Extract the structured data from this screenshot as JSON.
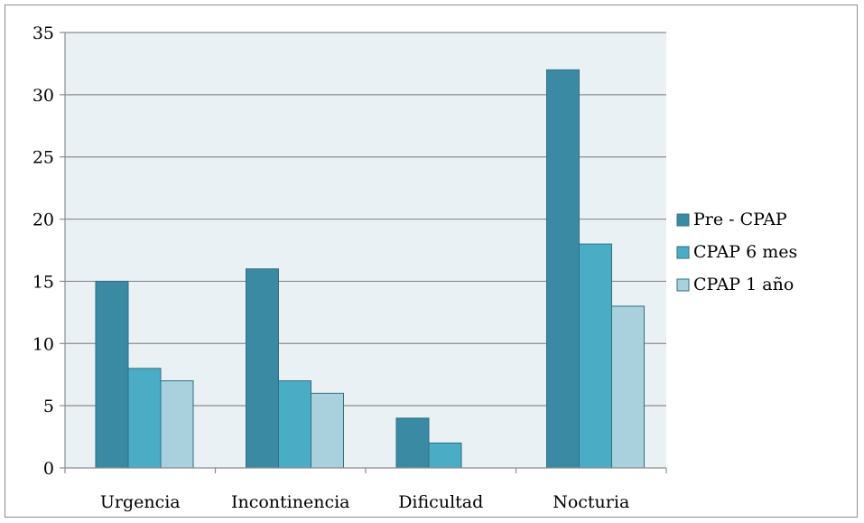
{
  "chart_data": {
    "type": "bar",
    "title": "",
    "xlabel": "",
    "ylabel": "",
    "categories": [
      "Urgencia",
      "Incontinencia",
      "Dificultad",
      "Nocturia"
    ],
    "series": [
      {
        "name": "Pre - CPAP",
        "color": "#3a8aa3",
        "values": [
          15,
          16,
          4,
          32
        ]
      },
      {
        "name": "CPAP 6 mes",
        "color": "#4bacc6",
        "values": [
          8,
          7,
          2,
          18
        ]
      },
      {
        "name": "CPAP 1 año",
        "color": "#a9d0dd",
        "values": [
          7,
          6,
          0,
          13
        ]
      }
    ],
    "ylim": [
      0,
      35
    ],
    "yticks": [
      0,
      5,
      10,
      15,
      20,
      25,
      30,
      35
    ],
    "grid": true,
    "plot_background": "#eaf1f5",
    "legend_position": "right"
  }
}
